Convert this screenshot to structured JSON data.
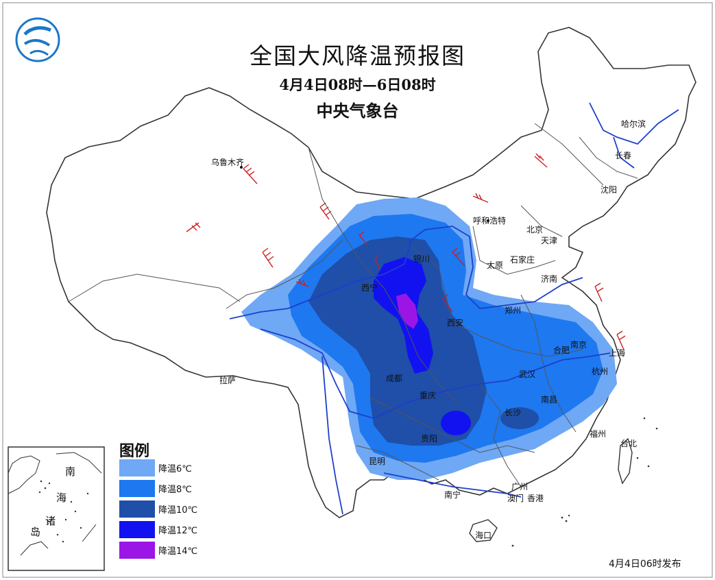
{
  "header": {
    "title": "全国大风降温预报图",
    "period": "4月4日08时—6日08时",
    "agency": "中央气象台"
  },
  "cities": [
    "乌鲁木齐",
    "呼和浩特",
    "北京",
    "天津",
    "银川",
    "太原",
    "石家庄",
    "济南",
    "西宁",
    "郑州",
    "西安",
    "南京",
    "合肥",
    "上海",
    "杭州",
    "成都",
    "武汉",
    "重庆",
    "南昌",
    "长沙",
    "拉萨",
    "福州",
    "台北",
    "贵阳",
    "昆明",
    "广州",
    "南宁",
    "澳门",
    "香港",
    "海口",
    "哈尔滨",
    "长春",
    "沈阳"
  ],
  "legend": {
    "title": "图例",
    "items": [
      {
        "label": "降温6℃",
        "color": "#6fa8f5",
        "drop_c": 6
      },
      {
        "label": "降温8℃",
        "color": "#1e78f0",
        "drop_c": 8
      },
      {
        "label": "降温10℃",
        "color": "#1f4fa8",
        "drop_c": 10
      },
      {
        "label": "降温12℃",
        "color": "#1212f0",
        "drop_c": 12
      },
      {
        "label": "降温14℃",
        "color": "#9b16e6",
        "drop_c": 14
      }
    ]
  },
  "inset": {
    "label_chars": [
      "南",
      "海",
      "诸",
      "岛"
    ]
  },
  "publish_note": "4月4日06时发布",
  "colors": {
    "border": "#444444",
    "river": "#1d3fc9",
    "wind_barb": "#cc1f1f"
  },
  "icons": [
    "cma-logo-icon",
    "wind-barb-icon"
  ]
}
